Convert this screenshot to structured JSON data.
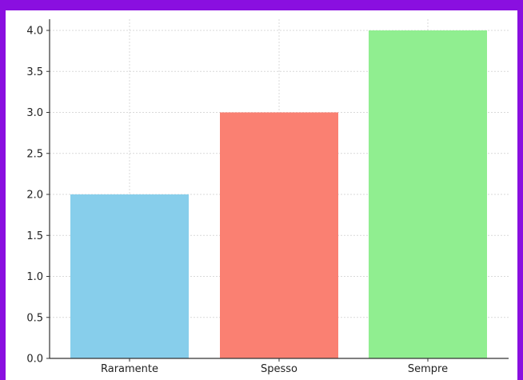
{
  "frame": {
    "border_color": "#8a0fe0"
  },
  "chart_data": {
    "type": "bar",
    "title": "",
    "xlabel": "",
    "ylabel": "",
    "categories": [
      "Raramente",
      "Spesso",
      "Sempre"
    ],
    "values": [
      2.0,
      3.0,
      4.0
    ],
    "bar_colors": [
      "#87ceeb",
      "#fa8072",
      "#90ee90"
    ],
    "ylim": [
      0,
      4.0
    ],
    "yticks": [
      "0.0",
      "0.5",
      "1.0",
      "1.5",
      "2.0",
      "2.5",
      "3.0",
      "3.5",
      "4.0"
    ],
    "ytick_values": [
      0.0,
      0.5,
      1.0,
      1.5,
      2.0,
      2.5,
      3.0,
      3.5,
      4.0
    ],
    "grid": true,
    "legend": "none"
  }
}
